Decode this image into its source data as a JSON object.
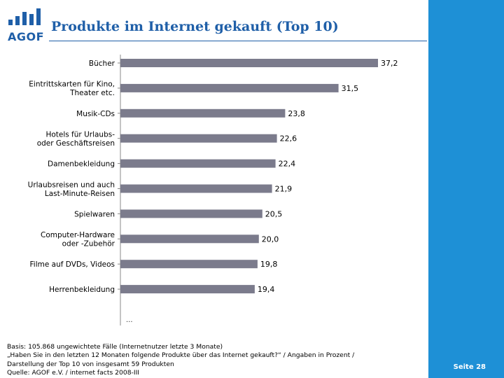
{
  "logo": {
    "text": "AGOF",
    "bars": [
      0.35,
      0.55,
      0.8,
      0.65,
      1.0
    ]
  },
  "title": "Produkte im Internet gekauft (Top 10)",
  "page_number": "Seite 28",
  "chart_data": {
    "type": "bar",
    "orientation": "horizontal",
    "title": "Produkte im Internet gekauft (Top 10)",
    "categories": [
      "Bücher",
      "Eintrittskarten für Kino,\nTheater etc.",
      "Musik-CDs",
      "Hotels für Urlaubs-\noder Geschäftsreisen",
      "Damenbekleidung",
      "Urlaubsreisen und auch\nLast-Minute-Reisen",
      "Spielwaren",
      "Computer-Hardware\noder -Zubehör",
      "Filme auf DVDs, Videos",
      "Herrenbekleidung"
    ],
    "values": [
      37.2,
      31.5,
      23.8,
      22.6,
      22.4,
      21.9,
      20.5,
      20.0,
      19.8,
      19.4
    ],
    "value_labels": [
      "37,2",
      "31,5",
      "23,8",
      "22,6",
      "22,4",
      "21,9",
      "20,5",
      "20,0",
      "19,8",
      "19,4"
    ],
    "xlim": [
      0,
      37.2
    ],
    "unit": "Prozent",
    "bar_color": "#7b7b8c",
    "continuation_marker": "..."
  },
  "footnote": {
    "line1": "Basis: 105.868 ungewichtete Fälle (Internetnutzer letzte 3 Monate)",
    "line2": "„Haben Sie in den letzten 12 Monaten folgende Produkte über das Internet gekauft?“ / Angaben in Prozent /",
    "line3": "Darstellung der Top 10 von insgesamt 59 Produkten",
    "line4": "Quelle: AGOF e.V. / internet facts 2008-III"
  },
  "colors": {
    "brand": "#1f5fa8",
    "side_panel": "#1e90d6"
  }
}
